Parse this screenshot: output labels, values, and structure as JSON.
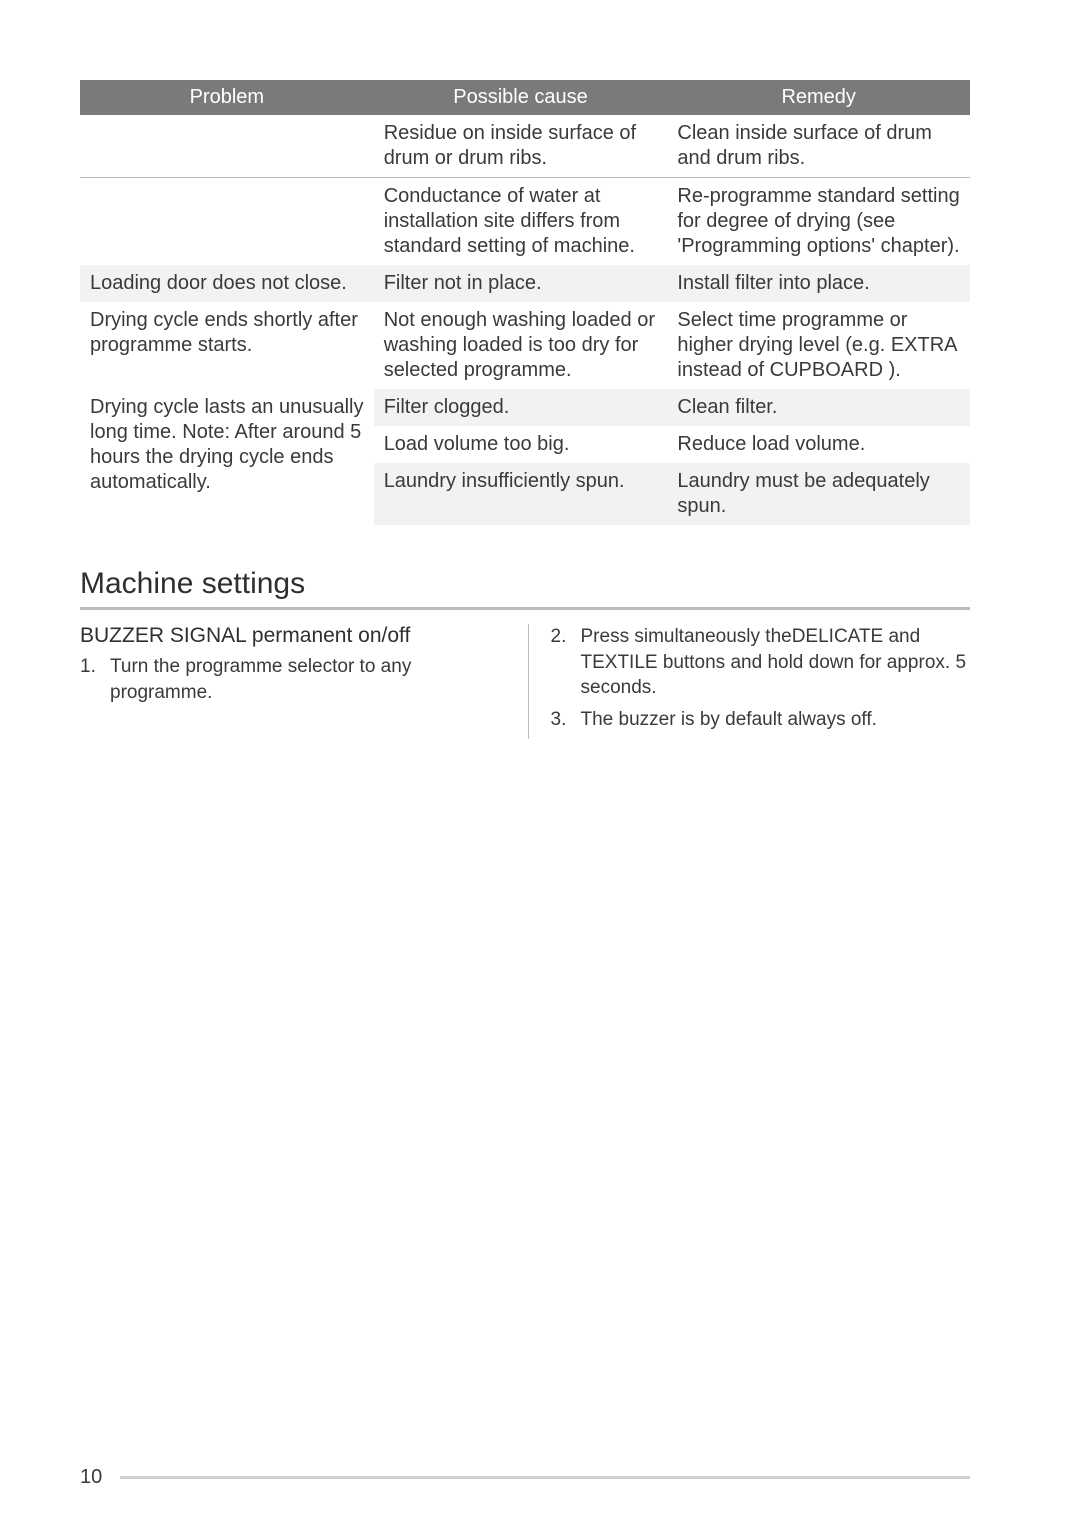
{
  "table": {
    "headers": {
      "problem": "Problem",
      "cause": "Possible cause",
      "remedy": "Remedy"
    },
    "rows": [
      {
        "band": false,
        "sep": false,
        "problem": "",
        "cause": "Residue on inside surface of drum or drum ribs.",
        "remedy": "Clean inside surface of drum and drum ribs."
      },
      {
        "band": false,
        "sep": true,
        "problem": "",
        "cause": "Conductance of water at installation site differs from standard setting of machine.",
        "remedy": "Re-programme standard setting for degree of drying (see 'Programming options' chapter)."
      },
      {
        "band": true,
        "sep": false,
        "problem": "Loading door does not close.",
        "cause": "Filter not in place.",
        "remedy": "Install filter into place."
      },
      {
        "band": false,
        "sep": false,
        "problem": "Drying cycle ends shortly after programme starts.",
        "cause": "Not enough washing loaded or washing loaded is too dry for selected programme.",
        "remedy": "Select time programme or higher drying level (e.g. EXTRA instead of CUPBOARD )."
      },
      {
        "band": true,
        "sep": false,
        "problem_rowspan": 3,
        "problem": "Drying cycle lasts an unusually long time. Note: After around 5 hours the drying cycle ends automatically.",
        "cause": "Filter clogged.",
        "remedy": "Clean filter."
      },
      {
        "band": false,
        "sep": false,
        "cause": "Load volume too big.",
        "remedy": "Reduce load volume."
      },
      {
        "band": true,
        "sep": false,
        "cause": "Laundry insufficiently spun.",
        "remedy": "Laundry must be adequately spun."
      }
    ]
  },
  "section": {
    "title": "Machine settings",
    "sub_head": "BUZZER SIGNAL permanent on/off",
    "left_steps": [
      "Turn the programme selector to any programme."
    ],
    "right_steps": [
      "Press simultaneously theDELICATE and TEXTILE buttons and hold down for approx. 5 seconds.",
      "The buzzer is by default always off."
    ]
  },
  "page_number": "10"
}
